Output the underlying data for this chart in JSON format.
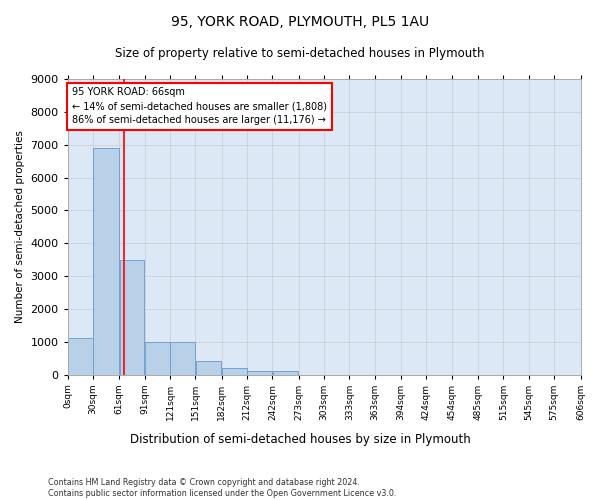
{
  "title": "95, YORK ROAD, PLYMOUTH, PL5 1AU",
  "subtitle": "Size of property relative to semi-detached houses in Plymouth",
  "xlabel": "Distribution of semi-detached houses by size in Plymouth",
  "ylabel": "Number of semi-detached properties",
  "annotation_line1": "95 YORK ROAD: 66sqm",
  "annotation_line2": "← 14% of semi-detached houses are smaller (1,808)",
  "annotation_line3": "86% of semi-detached houses are larger (11,176) →",
  "bin_edges": [
    0,
    30,
    61,
    91,
    121,
    151,
    182,
    212,
    242,
    273,
    303,
    333,
    363,
    394,
    424,
    454,
    485,
    515,
    545,
    575,
    606
  ],
  "bar_heights": [
    1100,
    6900,
    3500,
    1000,
    1000,
    400,
    200,
    100,
    100,
    0,
    0,
    0,
    0,
    0,
    0,
    0,
    0,
    0,
    0,
    0
  ],
  "bar_color": "#b8d0e8",
  "bar_edgecolor": "#6699cc",
  "vline_x": 66,
  "vline_color": "red",
  "ylim": [
    0,
    9000
  ],
  "yticks": [
    0,
    1000,
    2000,
    3000,
    4000,
    5000,
    6000,
    7000,
    8000,
    9000
  ],
  "grid_color": "#cccccc",
  "bg_color": "#dce8f5",
  "footer_line1": "Contains HM Land Registry data © Crown copyright and database right 2024.",
  "footer_line2": "Contains public sector information licensed under the Open Government Licence v3.0.",
  "tick_labels": [
    "0sqm",
    "30sqm",
    "61sqm",
    "91sqm",
    "121sqm",
    "151sqm",
    "182sqm",
    "212sqm",
    "242sqm",
    "273sqm",
    "303sqm",
    "333sqm",
    "363sqm",
    "394sqm",
    "424sqm",
    "454sqm",
    "485sqm",
    "515sqm",
    "545sqm",
    "575sqm",
    "606sqm"
  ]
}
